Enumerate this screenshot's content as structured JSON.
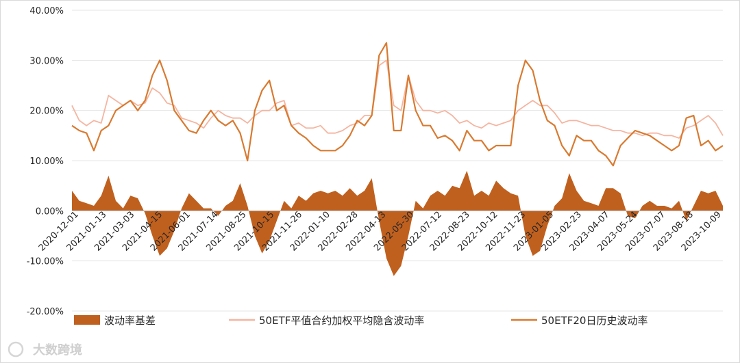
{
  "watermark": "大数跨境",
  "chart_data": {
    "type": "line",
    "ylim": [
      -0.2,
      0.4
    ],
    "yticks": [
      "-20.00%",
      "-10.00%",
      "0.00%",
      "10.00%",
      "20.00%",
      "30.00%",
      "40.00%"
    ],
    "x_labels": [
      "2020-12-01",
      "2021-01-13",
      "2021-03-03",
      "2021-04-15",
      "2021-06-01",
      "2021-07-14",
      "2021-08-25",
      "2021-10-15",
      "2021-11-26",
      "2022-01-10",
      "2022-02-28",
      "2022-04-13",
      "2022-05-30",
      "2022-07-12",
      "2022-08-23",
      "2022-10-12",
      "2022-11-23",
      "2023-01-05",
      "2023-02-23",
      "2023-04-07",
      "2023-05-24",
      "2023-07-07",
      "2023-08-18",
      "2023-10-09"
    ],
    "series": [
      {
        "name": "波动率基差",
        "kind": "area",
        "color": "#c0601e",
        "values": [
          0.04,
          0.02,
          0.015,
          0.01,
          0.03,
          0.07,
          0.02,
          0.005,
          0.03,
          0.025,
          -0.005,
          -0.05,
          -0.09,
          -0.075,
          -0.04,
          0.005,
          0.035,
          0.02,
          0.005,
          0.005,
          -0.01,
          0.01,
          0.02,
          0.055,
          0.01,
          -0.05,
          -0.085,
          -0.06,
          -0.02,
          0.02,
          0.005,
          0.03,
          0.02,
          0.035,
          0.04,
          0.035,
          0.04,
          0.03,
          0.045,
          0.03,
          0.04,
          0.065,
          -0.02,
          -0.095,
          -0.13,
          -0.11,
          -0.05,
          0.02,
          0.005,
          0.03,
          0.04,
          0.03,
          0.05,
          0.045,
          0.08,
          0.03,
          0.04,
          0.03,
          0.06,
          0.045,
          0.035,
          0.03,
          -0.05,
          -0.09,
          -0.08,
          -0.03,
          0.01,
          0.025,
          0.075,
          0.04,
          0.02,
          0.015,
          0.01,
          0.045,
          0.045,
          0.035,
          -0.01,
          -0.015,
          0.01,
          0.02,
          0.01,
          0.01,
          0.005,
          0.02,
          -0.02,
          0.01,
          0.04,
          0.035,
          0.04,
          0.01
        ]
      },
      {
        "name": "50ETF平值合约加权平均隐含波动率",
        "kind": "line",
        "color": "#f5b5a0",
        "values": [
          0.21,
          0.18,
          0.17,
          0.18,
          0.175,
          0.23,
          0.22,
          0.21,
          0.22,
          0.21,
          0.215,
          0.245,
          0.235,
          0.215,
          0.21,
          0.185,
          0.18,
          0.175,
          0.165,
          0.185,
          0.2,
          0.19,
          0.185,
          0.185,
          0.175,
          0.19,
          0.2,
          0.2,
          0.215,
          0.22,
          0.17,
          0.175,
          0.165,
          0.165,
          0.17,
          0.155,
          0.155,
          0.16,
          0.17,
          0.175,
          0.19,
          0.19,
          0.29,
          0.3,
          0.21,
          0.2,
          0.27,
          0.22,
          0.2,
          0.2,
          0.195,
          0.2,
          0.19,
          0.175,
          0.18,
          0.17,
          0.165,
          0.175,
          0.17,
          0.175,
          0.18,
          0.2,
          0.21,
          0.22,
          0.21,
          0.21,
          0.195,
          0.175,
          0.18,
          0.18,
          0.175,
          0.17,
          0.17,
          0.165,
          0.16,
          0.16,
          0.155,
          0.155,
          0.15,
          0.155,
          0.155,
          0.15,
          0.15,
          0.145,
          0.165,
          0.17,
          0.18,
          0.19,
          0.175,
          0.15
        ]
      },
      {
        "name": "50ETF20日历史波动率",
        "kind": "line",
        "color": "#d97a30",
        "values": [
          0.17,
          0.16,
          0.155,
          0.12,
          0.16,
          0.17,
          0.2,
          0.21,
          0.22,
          0.2,
          0.22,
          0.27,
          0.3,
          0.26,
          0.2,
          0.18,
          0.16,
          0.155,
          0.18,
          0.2,
          0.18,
          0.17,
          0.18,
          0.155,
          0.1,
          0.2,
          0.24,
          0.26,
          0.2,
          0.21,
          0.17,
          0.155,
          0.145,
          0.13,
          0.12,
          0.12,
          0.12,
          0.13,
          0.15,
          0.18,
          0.17,
          0.19,
          0.31,
          0.335,
          0.16,
          0.16,
          0.27,
          0.2,
          0.17,
          0.17,
          0.145,
          0.15,
          0.14,
          0.12,
          0.16,
          0.14,
          0.14,
          0.12,
          0.13,
          0.13,
          0.13,
          0.25,
          0.3,
          0.28,
          0.22,
          0.18,
          0.17,
          0.13,
          0.11,
          0.15,
          0.14,
          0.14,
          0.12,
          0.11,
          0.09,
          0.13,
          0.145,
          0.16,
          0.155,
          0.15,
          0.14,
          0.13,
          0.12,
          0.13,
          0.185,
          0.19,
          0.13,
          0.14,
          0.12,
          0.13
        ]
      }
    ]
  }
}
